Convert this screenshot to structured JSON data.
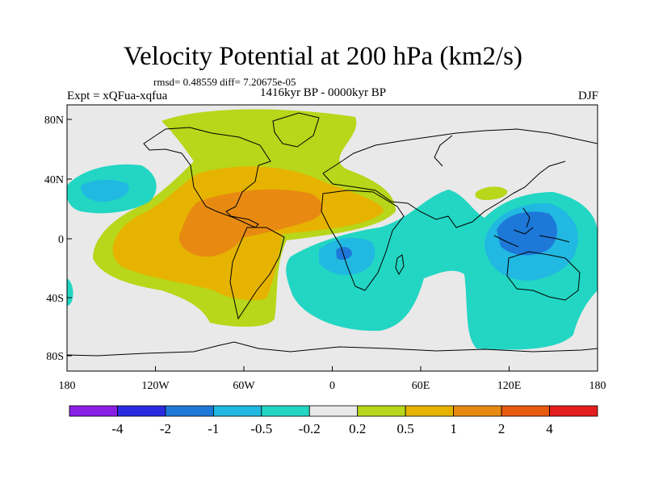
{
  "header": {
    "title": "Velocity Potential at 200 hPa (km2/s)",
    "stats": "rmsd= 0.48559 diff= 7.20675e-05",
    "experiment": "Expt = xQFua-xqfua",
    "period": "1416kyr BP - 0000kyr BP",
    "season": "DJF"
  },
  "map": {
    "lon_ticks": [
      "180",
      "120W",
      "60W",
      "0",
      "60E",
      "120E",
      "180"
    ],
    "lat_ticks": [
      "80N",
      "40N",
      "0",
      "40S",
      "80S"
    ]
  },
  "colorbar": {
    "colors": [
      "#8a1fe6",
      "#2a2ae0",
      "#1d78d8",
      "#21b8e2",
      "#22d6c3",
      "#e9e9e9",
      "#b8d61a",
      "#e6b400",
      "#e88a12",
      "#e85a10",
      "#e41e1e"
    ],
    "labels": [
      "-4",
      "-2",
      "-1",
      "-0.5",
      "-0.2",
      "0.2",
      "0.5",
      "1",
      "2",
      "4"
    ]
  }
}
